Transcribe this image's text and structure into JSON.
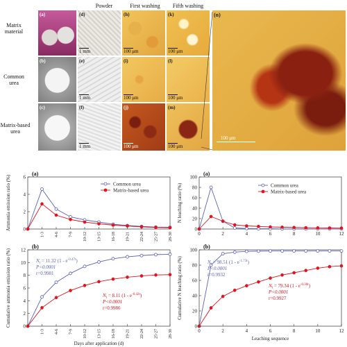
{
  "micrographs": {
    "col_headers": [
      "Powder",
      "First washing",
      "Fifth washing"
    ],
    "row_labels": [
      "Matrix\nmaterial",
      "Common\nurea",
      "Matrix-based\nurea"
    ],
    "panels": [
      {
        "letter": "(a)",
        "scale": ""
      },
      {
        "letter": "(d)",
        "scale": "1 mm"
      },
      {
        "letter": "(h)",
        "scale": "100 μm"
      },
      {
        "letter": "(k)",
        "scale": "100 μm"
      },
      {
        "letter": "(b)",
        "scale": ""
      },
      {
        "letter": "(e)",
        "scale": "1 mm"
      },
      {
        "letter": "(i)",
        "scale": "100 μm"
      },
      {
        "letter": "(l)",
        "scale": "100 μm"
      },
      {
        "letter": "(c)",
        "scale": ""
      },
      {
        "letter": "(f)",
        "scale": "1 mm"
      },
      {
        "letter": "(j)",
        "scale": "100 μm"
      },
      {
        "letter": "(m)",
        "scale": "100 μm"
      }
    ],
    "zoom_panel": {
      "letter": "(n)",
      "scale": "100 μm"
    }
  },
  "legend": {
    "common": "Common urea",
    "matrix": "Matrix-based urea"
  },
  "colors": {
    "common": "#5a63b8",
    "matrix": "#e0141e"
  },
  "chart_data": [
    {
      "id": "ammonia-emission",
      "type": "line",
      "panel_label": "(a)",
      "ylabel": "Ammonia emission ratio (%)",
      "ylim": [
        0,
        6
      ],
      "yticks": [
        "0",
        "2",
        "4",
        "6"
      ],
      "categories": [
        "0",
        "1-3",
        "4-6",
        "7-9",
        "10-12",
        "13-15",
        "16-18",
        "19-21",
        "22-24",
        "25-27",
        "28-30"
      ],
      "series": [
        {
          "name": "Common urea",
          "values": [
            0,
            4.6,
            2.3,
            1.4,
            1.05,
            0.8,
            0.55,
            0.4,
            0.3,
            0.22,
            0.2
          ]
        },
        {
          "name": "Matrix-based urea",
          "values": [
            0,
            2.9,
            1.6,
            1.1,
            0.8,
            0.6,
            0.45,
            0.35,
            0.25,
            0.18,
            0.15
          ]
        }
      ],
      "legend": "top-right"
    },
    {
      "id": "cumulative-ammonia",
      "type": "line",
      "panel_label": "(b)",
      "ylabel": "Cumulative ammonia emission ratio (%)",
      "xlabel": "Days after application (d)",
      "ylim": [
        0,
        12
      ],
      "yticks": [
        "0",
        "2",
        "4",
        "6",
        "8",
        "10",
        "12"
      ],
      "categories": [
        "0",
        "1-3",
        "4-6",
        "7-9",
        "10-12",
        "13-15",
        "16-18",
        "19-21",
        "22-24",
        "25-27",
        "28-30"
      ],
      "series": [
        {
          "name": "Common urea",
          "values": [
            0,
            4.6,
            6.9,
            8.3,
            9.4,
            10.1,
            10.6,
            10.9,
            11.1,
            11.25,
            11.3
          ]
        },
        {
          "name": "Matrix-based urea",
          "values": [
            0,
            2.9,
            4.5,
            5.6,
            6.4,
            7.0,
            7.4,
            7.7,
            7.9,
            8.05,
            8.1
          ]
        }
      ],
      "annotations": [
        {
          "series": "Common urea",
          "equation": "Nt = 11.32 (1 - e^-0.47t)",
          "p": "P<0.0001",
          "r": "r=0.9981"
        },
        {
          "series": "Matrix-based urea",
          "equation": "Nt = 8.11 (1 - e^-0.42t)",
          "p": "P<0.0001",
          "r": "r=0.9986"
        }
      ]
    },
    {
      "id": "n-leaching",
      "type": "line",
      "panel_label": "(a)",
      "ylabel": "N leaching ratio (%)",
      "ylim": [
        0,
        100
      ],
      "yticks": [
        "0",
        "20",
        "40",
        "60",
        "80",
        "100"
      ],
      "xlim": [
        0,
        12
      ],
      "xticks": [
        "0",
        "2",
        "4",
        "6",
        "8",
        "10",
        "12"
      ],
      "x": [
        0,
        1,
        2,
        3,
        4,
        5,
        6,
        7,
        8,
        9,
        10,
        11,
        12
      ],
      "series": [
        {
          "name": "Common urea",
          "values": [
            0,
            80,
            15,
            2,
            1,
            0.5,
            0.5,
            0.3,
            0.3,
            0.2,
            0.2,
            0.2,
            0.2
          ]
        },
        {
          "name": "Matrix-based urea",
          "values": [
            0,
            24,
            15,
            8,
            6,
            5,
            4,
            3.5,
            3,
            2.5,
            2.2,
            2,
            1.8
          ]
        }
      ],
      "legend": "top-right"
    },
    {
      "id": "cumulative-n-leaching",
      "type": "line",
      "panel_label": "(b)",
      "ylabel": "Cumulative N leaching ratio (%)",
      "xlabel": "Leaching sequence",
      "ylim": [
        0,
        100
      ],
      "yticks": [
        "0",
        "20",
        "40",
        "60",
        "80",
        "100"
      ],
      "xlim": [
        0,
        12
      ],
      "xticks": [
        "0",
        "2",
        "4",
        "6",
        "8",
        "10",
        "12"
      ],
      "x": [
        0,
        1,
        2,
        3,
        4,
        5,
        6,
        7,
        8,
        9,
        10,
        11,
        12
      ],
      "series": [
        {
          "name": "Common urea",
          "values": [
            0,
            80,
            95,
            97,
            98,
            98.3,
            98.5,
            98.5,
            98.5,
            98.5,
            98.5,
            98.5,
            98.5
          ]
        },
        {
          "name": "Matrix-based urea",
          "values": [
            0,
            24,
            39,
            47,
            53,
            58,
            63,
            67,
            70,
            73,
            76,
            78,
            79
          ]
        }
      ],
      "annotations": [
        {
          "series": "Common urea",
          "equation": "Nt = 98.51 (1 - e^-1.73t)",
          "p": "P<0.0001",
          "r": "r=0.9932"
        },
        {
          "series": "Matrix-based urea",
          "equation": "Nt = 79.34 (1 - e^-0.30t)",
          "p": "P<0.0001",
          "r": "r=0.9927"
        }
      ]
    }
  ]
}
